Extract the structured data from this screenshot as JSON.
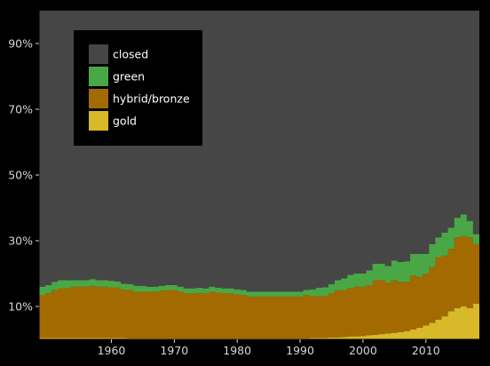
{
  "chart_data": {
    "type": "area",
    "stacked": true,
    "x": [
      1949,
      1950,
      1951,
      1952,
      1953,
      1954,
      1955,
      1956,
      1957,
      1958,
      1959,
      1960,
      1961,
      1962,
      1963,
      1964,
      1965,
      1966,
      1967,
      1968,
      1969,
      1970,
      1971,
      1972,
      1973,
      1974,
      1975,
      1976,
      1977,
      1978,
      1979,
      1980,
      1981,
      1982,
      1983,
      1984,
      1985,
      1986,
      1987,
      1988,
      1989,
      1990,
      1991,
      1992,
      1993,
      1994,
      1995,
      1996,
      1997,
      1998,
      1999,
      2000,
      2001,
      2002,
      2003,
      2004,
      2005,
      2006,
      2007,
      2008,
      2009,
      2010,
      2011,
      2012,
      2013,
      2014,
      2015,
      2016,
      2017,
      2018
    ],
    "series": [
      {
        "name": "gold",
        "color": "#d8b92a",
        "values": [
          0.4,
          0.4,
          0.4,
          0.4,
          0.4,
          0.4,
          0.4,
          0.4,
          0.4,
          0.4,
          0.4,
          0.4,
          0.4,
          0.4,
          0.3,
          0.3,
          0.3,
          0.3,
          0.3,
          0.3,
          0.3,
          0.3,
          0.3,
          0.3,
          0.3,
          0.3,
          0.3,
          0.3,
          0.3,
          0.3,
          0.3,
          0.3,
          0.3,
          0.3,
          0.3,
          0.3,
          0.3,
          0.3,
          0.3,
          0.3,
          0.3,
          0.3,
          0.3,
          0.4,
          0.4,
          0.4,
          0.6,
          0.6,
          0.7,
          0.8,
          0.9,
          1.0,
          1.2,
          1.4,
          1.6,
          1.8,
          2.0,
          2.2,
          2.5,
          3.0,
          3.5,
          4.2,
          5.0,
          6.0,
          7.0,
          8.5,
          9.5,
          10.0,
          9.5,
          10.8
        ]
      },
      {
        "name": "hybrid/bronze",
        "color": "#a26a00",
        "values": [
          13.0,
          13.6,
          14.6,
          15.1,
          15.1,
          15.6,
          15.6,
          15.6,
          15.9,
          15.6,
          15.6,
          15.4,
          15.4,
          14.7,
          14.7,
          14.2,
          14.2,
          14.2,
          14.2,
          14.5,
          14.7,
          14.7,
          14.2,
          13.7,
          13.7,
          13.9,
          13.7,
          14.2,
          13.9,
          13.7,
          13.7,
          13.4,
          13.2,
          12.7,
          12.7,
          12.7,
          12.7,
          12.7,
          12.7,
          12.7,
          12.7,
          12.7,
          13.2,
          12.8,
          12.8,
          12.8,
          13.4,
          14.4,
          14.3,
          14.8,
          15.1,
          15.0,
          15.3,
          16.6,
          16.4,
          15.5,
          16.0,
          15.3,
          15.0,
          16.5,
          15.5,
          15.8,
          17.0,
          19.0,
          18.5,
          19.0,
          21.5,
          21.5,
          21.5,
          18.2
        ]
      },
      {
        "name": "green",
        "color": "#49a845",
        "values": [
          2.6,
          2.5,
          2.5,
          2.5,
          2.5,
          2.0,
          2.0,
          2.0,
          2.0,
          2.0,
          2.0,
          2.0,
          1.8,
          1.8,
          1.8,
          1.8,
          1.8,
          1.5,
          1.5,
          1.5,
          1.5,
          1.5,
          1.5,
          1.5,
          1.5,
          1.5,
          1.5,
          1.5,
          1.5,
          1.5,
          1.5,
          1.5,
          1.5,
          1.5,
          1.5,
          1.5,
          1.5,
          1.5,
          1.5,
          1.5,
          1.5,
          1.5,
          1.5,
          2.0,
          2.5,
          2.6,
          2.8,
          3.0,
          3.5,
          4.0,
          4.0,
          4.0,
          4.5,
          5.0,
          5.0,
          5.0,
          6.0,
          6.0,
          6.2,
          6.5,
          7.0,
          6.0,
          7.0,
          6.0,
          7.0,
          6.5,
          6.0,
          6.5,
          5.0,
          3.0
        ]
      },
      {
        "name": "closed",
        "color": "#464646",
        "values": [
          83.9,
          83.5,
          82.5,
          82.0,
          82.0,
          82.0,
          82.0,
          82.0,
          81.7,
          82.0,
          82.0,
          82.2,
          82.4,
          83.1,
          83.2,
          83.7,
          83.7,
          84.0,
          84.0,
          83.7,
          83.5,
          83.5,
          84.0,
          84.5,
          84.5,
          84.3,
          84.5,
          84.0,
          84.3,
          84.5,
          84.5,
          84.8,
          85.0,
          85.5,
          85.5,
          85.5,
          85.5,
          85.5,
          85.5,
          85.5,
          85.5,
          85.5,
          85.0,
          84.8,
          84.3,
          84.2,
          83.2,
          82.0,
          81.5,
          80.4,
          80.0,
          80.0,
          79.0,
          77.0,
          77.0,
          77.7,
          76.0,
          76.5,
          76.3,
          74.0,
          74.0,
          74.0,
          71.0,
          69.0,
          67.5,
          66.0,
          63.0,
          62.0,
          64.0,
          68.0
        ]
      }
    ],
    "xlabel": "",
    "ylabel": "",
    "xlim": [
      1949,
      2018
    ],
    "ylim": [
      0,
      100
    ],
    "xticks": [
      1960,
      1970,
      1980,
      1990,
      2000,
      2010
    ],
    "yticks": [
      10,
      30,
      50,
      70,
      90
    ],
    "ytick_labels": [
      "10%",
      "30%",
      "50%",
      "70%",
      "90%"
    ],
    "grid": false,
    "legend": {
      "placement": "top-left",
      "order": [
        "closed",
        "green",
        "hybrid/bronze",
        "gold"
      ]
    }
  }
}
